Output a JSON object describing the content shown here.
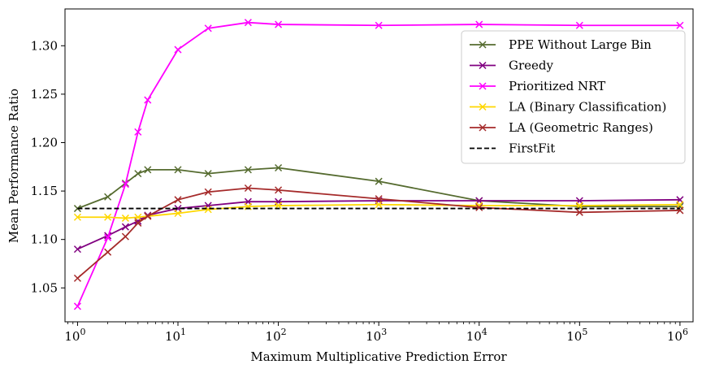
{
  "chart_data": {
    "type": "line",
    "xscale": "log",
    "xlabel": "Maximum Multiplicative Prediction Error",
    "ylabel": "Mean Performance Ratio",
    "xlim": [
      0.75,
      1350000.0
    ],
    "ylim": [
      1.015,
      1.338
    ],
    "xticks": [
      {
        "value": 1,
        "base": "10",
        "exp": "0"
      },
      {
        "value": 10,
        "base": "10",
        "exp": "1"
      },
      {
        "value": 100,
        "base": "10",
        "exp": "2"
      },
      {
        "value": 1000,
        "base": "10",
        "exp": "3"
      },
      {
        "value": 10000,
        "base": "10",
        "exp": "4"
      },
      {
        "value": 100000,
        "base": "10",
        "exp": "5"
      },
      {
        "value": 1000000,
        "base": "10",
        "exp": "6"
      }
    ],
    "yticks": [
      {
        "value": 1.05,
        "label": "1.05"
      },
      {
        "value": 1.1,
        "label": "1.10"
      },
      {
        "value": 1.15,
        "label": "1.15"
      },
      {
        "value": 1.2,
        "label": "1.20"
      },
      {
        "value": 1.25,
        "label": "1.25"
      },
      {
        "value": 1.3,
        "label": "1.30"
      }
    ],
    "legend_position": "upper-right",
    "series": [
      {
        "name": "PPE Without Large Bin",
        "color": "#556b2f",
        "marker": "x",
        "x": [
          1,
          2,
          3,
          4,
          5,
          10,
          20,
          50,
          100,
          1000,
          10000,
          100000,
          1000000
        ],
        "y": [
          1.132,
          1.144,
          1.158,
          1.168,
          1.172,
          1.172,
          1.168,
          1.172,
          1.174,
          1.16,
          1.14,
          1.134,
          1.134
        ]
      },
      {
        "name": "Greedy",
        "color": "#800080",
        "marker": "x",
        "x": [
          1,
          2,
          3,
          4,
          5,
          10,
          20,
          50,
          100,
          1000,
          10000,
          100000,
          1000000
        ],
        "y": [
          1.09,
          1.104,
          1.113,
          1.119,
          1.125,
          1.132,
          1.135,
          1.139,
          1.139,
          1.14,
          1.14,
          1.14,
          1.141
        ]
      },
      {
        "name": "Prioritized NRT",
        "color": "#ff00ff",
        "marker": "x",
        "x": [
          1,
          2,
          3,
          4,
          5,
          10,
          20,
          50,
          100,
          1000,
          10000,
          100000,
          1000000
        ],
        "y": [
          1.031,
          1.102,
          1.157,
          1.211,
          1.244,
          1.296,
          1.318,
          1.324,
          1.322,
          1.321,
          1.322,
          1.321,
          1.321
        ]
      },
      {
        "name": "LA (Binary Classification)",
        "color": "#ffd700",
        "marker": "x",
        "x": [
          1,
          2,
          3,
          4,
          5,
          10,
          20,
          50,
          100,
          1000,
          10000,
          100000,
          1000000
        ],
        "y": [
          1.123,
          1.123,
          1.122,
          1.123,
          1.124,
          1.127,
          1.131,
          1.134,
          1.135,
          1.136,
          1.135,
          1.135,
          1.136
        ]
      },
      {
        "name": "LA (Geometric Ranges)",
        "color": "#a52a2a",
        "marker": "x",
        "x": [
          1,
          2,
          3,
          4,
          5,
          10,
          20,
          50,
          100,
          1000,
          10000,
          100000,
          1000000
        ],
        "y": [
          1.06,
          1.087,
          1.103,
          1.117,
          1.124,
          1.141,
          1.149,
          1.153,
          1.151,
          1.142,
          1.133,
          1.128,
          1.13
        ]
      },
      {
        "name": "FirstFit",
        "color": "#000000",
        "marker": "none",
        "dashed": true,
        "x": [
          1,
          1000000
        ],
        "y": [
          1.132,
          1.132
        ]
      }
    ]
  }
}
